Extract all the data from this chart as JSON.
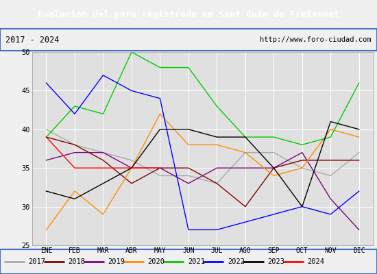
{
  "title": "Evolucion del paro registrado en Sant Guim de Freixenet",
  "subtitle_left": "2017 - 2024",
  "subtitle_right": "http://www.foro-ciudad.com",
  "months": [
    "ENE",
    "FEB",
    "MAR",
    "ABR",
    "MAY",
    "JUN",
    "JUL",
    "AGO",
    "SEP",
    "OCT",
    "NOV",
    "DIC"
  ],
  "ylim": [
    25,
    50
  ],
  "yticks": [
    25,
    30,
    35,
    40,
    45,
    50
  ],
  "series": {
    "2017": {
      "color": "#aaaaaa",
      "values": [
        40,
        38,
        37,
        36,
        34,
        34,
        33,
        37,
        37,
        35,
        34,
        37
      ]
    },
    "2018": {
      "color": "#800000",
      "values": [
        39,
        38,
        36,
        33,
        35,
        35,
        33,
        30,
        35,
        36,
        36,
        36
      ]
    },
    "2019": {
      "color": "#800080",
      "values": [
        36,
        37,
        37,
        35,
        35,
        33,
        35,
        35,
        35,
        37,
        31,
        27
      ]
    },
    "2020": {
      "color": "#ff8c00",
      "values": [
        27,
        32,
        29,
        35,
        42,
        38,
        38,
        37,
        34,
        35,
        40,
        39
      ]
    },
    "2021": {
      "color": "#00cc00",
      "values": [
        39,
        43,
        42,
        50,
        48,
        48,
        43,
        39,
        39,
        38,
        39,
        46
      ]
    },
    "2022": {
      "color": "#0000ff",
      "values": [
        46,
        42,
        47,
        45,
        44,
        27,
        27,
        28,
        29,
        30,
        29,
        32
      ]
    },
    "2023": {
      "color": "#000000",
      "values": [
        32,
        31,
        33,
        35,
        40,
        40,
        39,
        39,
        35,
        30,
        41,
        40
      ]
    },
    "2024": {
      "color": "#ff0000",
      "values": [
        39,
        35,
        35,
        35,
        35,
        null,
        null,
        null,
        null,
        null,
        null,
        null
      ]
    }
  },
  "background_color": "#f0f0f0",
  "plot_bg_color": "#e0e0e0",
  "title_bg_color": "#4472c4",
  "title_color": "#ffffff",
  "grid_color": "#ffffff",
  "legend_years": [
    "2017",
    "2018",
    "2019",
    "2020",
    "2021",
    "2022",
    "2023",
    "2024"
  ],
  "fig_width": 5.5,
  "fig_height": 4.0,
  "dpi": 100
}
